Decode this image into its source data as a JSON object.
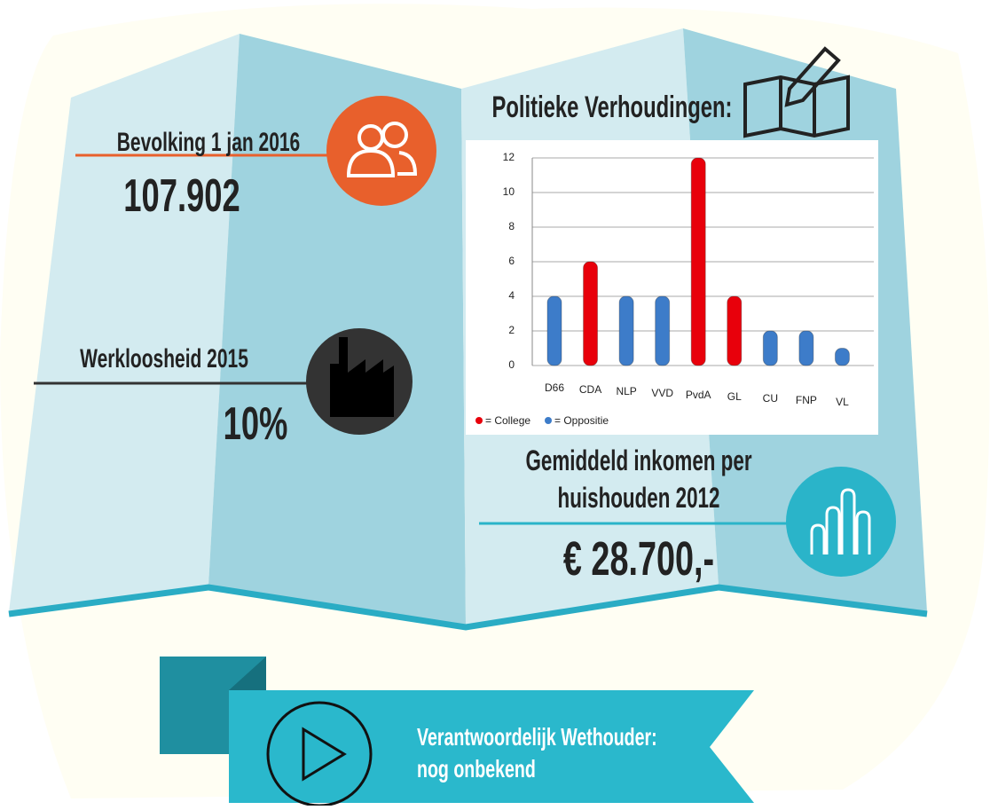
{
  "population": {
    "label": "Bevolking 1 jan 2016",
    "value": "107.902"
  },
  "unemployment": {
    "label": "Werkloosheid 2015",
    "value": "10%"
  },
  "income": {
    "label_lines": [
      "Gemiddeld inkomen per",
      "huishouden 2012"
    ],
    "value": "€ 28.700,-"
  },
  "chart_data": {
    "type": "bar",
    "title": "Politieke Verhoudingen:",
    "categories": [
      "D66",
      "CDA",
      "NLP",
      "VVD",
      "PvdA",
      "GL",
      "CU",
      "FNP",
      "VL"
    ],
    "values": [
      4,
      6,
      4,
      4,
      12,
      4,
      2,
      2,
      1
    ],
    "bar_group": [
      1,
      0,
      1,
      1,
      0,
      0,
      1,
      1,
      1
    ],
    "legend": [
      {
        "name": "= College",
        "color": "#e8000b"
      },
      {
        "name": "= Oppositie",
        "color": "#3d7cc9"
      }
    ],
    "ylim": [
      0,
      12
    ],
    "yticks": [
      0,
      2,
      4,
      6,
      8,
      10,
      12
    ],
    "grid": true
  },
  "footer": {
    "lines": [
      "Verantwoordelijk Wethouder:",
      "nog onbekend"
    ]
  }
}
